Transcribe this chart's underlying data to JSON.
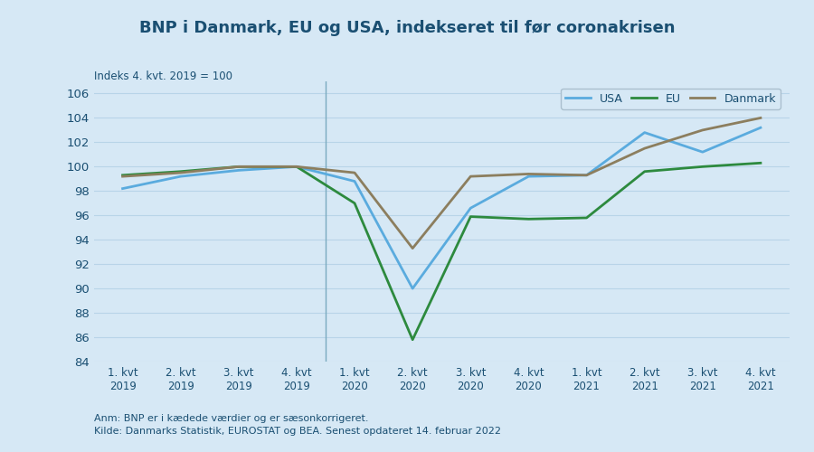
{
  "title": "BNP i Danmark, EU og USA, indekseret til ør coronakrisen",
  "title2": "BNP i Danmark, EU og USA, indekseret til før coronakrisen",
  "subtitle": "Indeks 4. kvt. 2019 = 100",
  "xlabel_note": "Anm: BNP er i kædede værdier og er sæsonkorrigeret.",
  "source_note": "Kilde: Danmarks Statistik, EUROSTAT og BEA. Senest opdateret 14. februar 2022",
  "x_labels": [
    "1. kvt\n2019",
    "2. kvt\n2019",
    "3. kvt\n2019",
    "4. kvt\n2019",
    "1. kvt\n2020",
    "2. kvt\n2020",
    "3. kvt\n2020",
    "4. kvt\n2020",
    "1. kvt\n2021",
    "2. kvt\n2021",
    "3. kvt\n2021",
    "4. kvt\n2021"
  ],
  "USA": [
    98.2,
    99.2,
    99.7,
    100.0,
    98.8,
    90.0,
    96.6,
    99.2,
    99.3,
    102.8,
    101.2,
    103.2
  ],
  "EU": [
    99.3,
    99.6,
    100.0,
    100.0,
    97.0,
    85.8,
    95.9,
    95.7,
    95.8,
    99.6,
    100.0,
    100.3
  ],
  "Danmark": [
    99.2,
    99.5,
    100.0,
    100.0,
    99.5,
    93.3,
    99.2,
    99.4,
    99.3,
    101.5,
    103.0,
    104.0
  ],
  "usa_color": "#5aabde",
  "eu_color": "#2d8a3e",
  "danmark_color": "#8c7e5e",
  "background_color": "#d6e8f5",
  "grid_color": "#b8d4e8",
  "ylim": [
    84,
    107
  ],
  "yticks": [
    84,
    86,
    88,
    90,
    92,
    94,
    96,
    98,
    100,
    102,
    104,
    106
  ],
  "vertical_line_x": 3.5,
  "title_color": "#1a4f72",
  "tick_color": "#1a4f72",
  "note_color": "#1a4f72"
}
